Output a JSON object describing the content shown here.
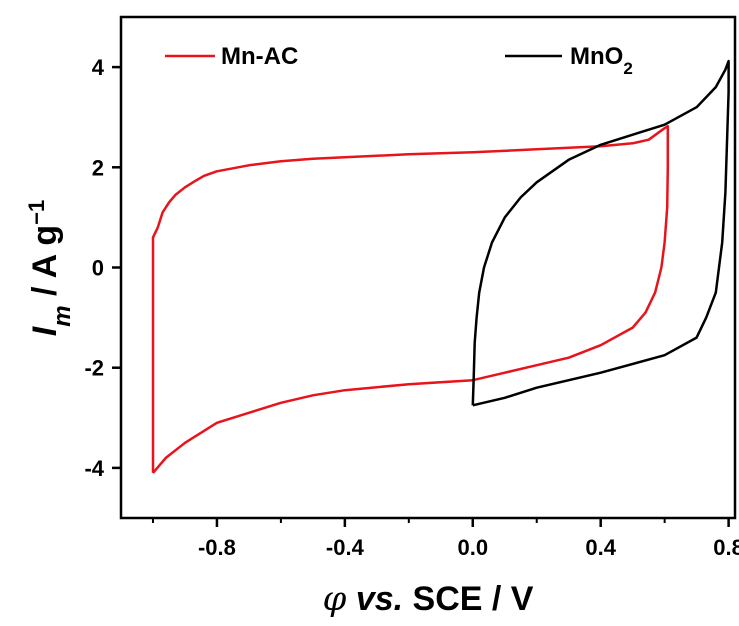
{
  "chart_data": {
    "type": "line",
    "xlabel": {
      "symbol": "φ",
      "vs": "vs.",
      "rest": " SCE / V"
    },
    "ylabel": {
      "symbol": "I",
      "sub": "m",
      "rest": " / A g",
      "sup": "−1"
    },
    "xlim": [
      -1.1,
      0.82
    ],
    "ylim": [
      -5,
      5
    ],
    "xticks": [
      -0.8,
      -0.4,
      0.0,
      0.4,
      0.8
    ],
    "xtick_labels": [
      "-0.8",
      "-0.4",
      "0.0",
      "0.4",
      "0.8"
    ],
    "yticks": [
      -4,
      -2,
      0,
      2,
      4
    ],
    "ytick_labels": [
      "-4",
      "-2",
      "0",
      "2",
      "4"
    ],
    "legend": "top",
    "series": [
      {
        "name": "Mn-AC",
        "color": "#e8141c",
        "points": [
          [
            -1.0,
            -4.1
          ],
          [
            -1.0,
            -3.0
          ],
          [
            -1.0,
            0.0
          ],
          [
            -1.0,
            0.6
          ],
          [
            -0.985,
            0.8
          ],
          [
            -0.97,
            1.1
          ],
          [
            -0.95,
            1.3
          ],
          [
            -0.93,
            1.45
          ],
          [
            -0.9,
            1.6
          ],
          [
            -0.87,
            1.72
          ],
          [
            -0.84,
            1.83
          ],
          [
            -0.8,
            1.92
          ],
          [
            -0.7,
            2.04
          ],
          [
            -0.6,
            2.12
          ],
          [
            -0.5,
            2.17
          ],
          [
            -0.4,
            2.2
          ],
          [
            -0.2,
            2.26
          ],
          [
            0.0,
            2.3
          ],
          [
            0.2,
            2.36
          ],
          [
            0.4,
            2.42
          ],
          [
            0.5,
            2.48
          ],
          [
            0.55,
            2.55
          ],
          [
            0.6,
            2.78
          ],
          [
            0.61,
            2.82
          ],
          [
            0.61,
            2.0
          ],
          [
            0.608,
            1.2
          ],
          [
            0.6,
            0.5
          ],
          [
            0.59,
            0.0
          ],
          [
            0.57,
            -0.5
          ],
          [
            0.54,
            -0.9
          ],
          [
            0.5,
            -1.2
          ],
          [
            0.4,
            -1.55
          ],
          [
            0.3,
            -1.8
          ],
          [
            0.2,
            -1.95
          ],
          [
            0.1,
            -2.1
          ],
          [
            0.0,
            -2.25
          ],
          [
            -0.2,
            -2.33
          ],
          [
            -0.4,
            -2.45
          ],
          [
            -0.5,
            -2.55
          ],
          [
            -0.6,
            -2.7
          ],
          [
            -0.7,
            -2.9
          ],
          [
            -0.8,
            -3.1
          ],
          [
            -0.9,
            -3.5
          ],
          [
            -0.96,
            -3.8
          ],
          [
            -1.0,
            -4.1
          ]
        ]
      },
      {
        "name": "MnO2",
        "name_main": "MnO",
        "name_sub": "2",
        "color": "#000000",
        "points": [
          [
            0.0,
            -2.75
          ],
          [
            0.003,
            -2.2
          ],
          [
            0.006,
            -1.5
          ],
          [
            0.012,
            -1.0
          ],
          [
            0.02,
            -0.5
          ],
          [
            0.035,
            0.0
          ],
          [
            0.06,
            0.5
          ],
          [
            0.1,
            1.0
          ],
          [
            0.15,
            1.4
          ],
          [
            0.2,
            1.7
          ],
          [
            0.3,
            2.15
          ],
          [
            0.4,
            2.45
          ],
          [
            0.5,
            2.65
          ],
          [
            0.6,
            2.85
          ],
          [
            0.7,
            3.2
          ],
          [
            0.76,
            3.6
          ],
          [
            0.79,
            3.95
          ],
          [
            0.8,
            4.12
          ],
          [
            0.8,
            3.5
          ],
          [
            0.795,
            2.5
          ],
          [
            0.79,
            1.5
          ],
          [
            0.78,
            0.5
          ],
          [
            0.77,
            0.0
          ],
          [
            0.76,
            -0.5
          ],
          [
            0.73,
            -1.0
          ],
          [
            0.7,
            -1.4
          ],
          [
            0.6,
            -1.75
          ],
          [
            0.4,
            -2.1
          ],
          [
            0.2,
            -2.4
          ],
          [
            0.1,
            -2.6
          ],
          [
            0.0,
            -2.75
          ]
        ]
      }
    ]
  }
}
